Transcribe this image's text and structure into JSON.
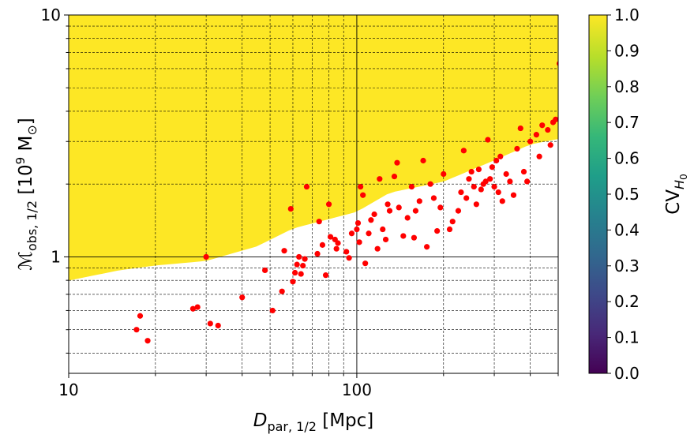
{
  "chart_data": {
    "type": "scatter",
    "title": "",
    "xlabel": "D_par,1/2 [Mpc]",
    "xlabel_parts": {
      "main": "D",
      "sub": "par, 1/2",
      "unit": " [Mpc]"
    },
    "ylabel": "M_obs,1/2 [10^9 M_⊙]",
    "ylabel_parts": {
      "main": "ℳ",
      "sub": "obs, 1/2",
      "unit_open": " [10",
      "unit_exp": "9",
      "unit_close": " M",
      "unit_sun_sub": "⊙",
      "unit_end": "]"
    },
    "xscale": "log",
    "yscale": "log",
    "xlim": [
      10,
      500
    ],
    "ylim": [
      0.33,
      10
    ],
    "x_tick_labels": [
      {
        "value": 10,
        "label": "10"
      },
      {
        "value": 100,
        "label": "100"
      }
    ],
    "y_tick_labels": [
      {
        "value": 1,
        "label": "1"
      },
      {
        "value": 10,
        "label": "10"
      }
    ],
    "grid": "major solid, minor dashed",
    "background": {
      "type": "heatmap",
      "description_quantity": "CV_H0",
      "boundary": [
        {
          "x": 10,
          "y": 0.78
        },
        {
          "x": 15,
          "y": 0.86
        },
        {
          "x": 20,
          "y": 0.9
        },
        {
          "x": 30,
          "y": 0.94
        },
        {
          "x": 45,
          "y": 1.08
        },
        {
          "x": 60,
          "y": 1.28
        },
        {
          "x": 80,
          "y": 1.4
        },
        {
          "x": 100,
          "y": 1.5
        },
        {
          "x": 130,
          "y": 1.8
        },
        {
          "x": 200,
          "y": 2.0
        },
        {
          "x": 300,
          "y": 2.45
        },
        {
          "x": 400,
          "y": 2.85
        },
        {
          "x": 500,
          "y": 3.0
        }
      ]
    },
    "colorbar": {
      "label": "CV_H0",
      "label_parts": {
        "main": "CV",
        "sub": "H",
        "subsub": "0"
      },
      "range": [
        0.0,
        1.0
      ],
      "tick_labels": [
        "0.0",
        "0.1",
        "0.2",
        "0.3",
        "0.4",
        "0.5",
        "0.6",
        "0.7",
        "0.8",
        "0.9",
        "1.0"
      ],
      "colormap": [
        "#440154",
        "#482878",
        "#3e4989",
        "#31688e",
        "#26828e",
        "#1f9e89",
        "#35b779",
        "#6ece58",
        "#b5de2b",
        "#fde725"
      ]
    },
    "series": [
      {
        "marker_color": "#ff0000",
        "points": [
          [
            17.2,
            0.5
          ],
          [
            17.7,
            0.57
          ],
          [
            18.8,
            0.45
          ],
          [
            27.0,
            0.61
          ],
          [
            28.0,
            0.62
          ],
          [
            30.0,
            1.0
          ],
          [
            31.0,
            0.53
          ],
          [
            33.0,
            0.52
          ],
          [
            40.0,
            0.68
          ],
          [
            48.0,
            0.88
          ],
          [
            51.0,
            0.6
          ],
          [
            55.0,
            0.72
          ],
          [
            56.0,
            1.06
          ],
          [
            59.0,
            1.58
          ],
          [
            60.0,
            0.79
          ],
          [
            61.0,
            0.86
          ],
          [
            62.0,
            0.93
          ],
          [
            63.0,
            1.0
          ],
          [
            64.0,
            0.85
          ],
          [
            65.0,
            0.92
          ],
          [
            66.0,
            0.98
          ],
          [
            67.0,
            1.95
          ],
          [
            73.0,
            1.03
          ],
          [
            74.0,
            1.4
          ],
          [
            76.0,
            1.12
          ],
          [
            78.0,
            0.84
          ],
          [
            80.0,
            1.65
          ],
          [
            81.0,
            1.21
          ],
          [
            84.0,
            1.18
          ],
          [
            85.0,
            1.08
          ],
          [
            86.0,
            1.14
          ],
          [
            92.0,
            1.05
          ],
          [
            94.0,
            0.99
          ],
          [
            96.0,
            1.25
          ],
          [
            100.0,
            1.3
          ],
          [
            101.0,
            1.38
          ],
          [
            102.0,
            1.15
          ],
          [
            103.0,
            1.95
          ],
          [
            105.0,
            1.8
          ],
          [
            107.0,
            0.94
          ],
          [
            110.0,
            1.25
          ],
          [
            112.0,
            1.42
          ],
          [
            115.0,
            1.5
          ],
          [
            118.0,
            1.08
          ],
          [
            120.0,
            2.1
          ],
          [
            123.0,
            1.3
          ],
          [
            126.0,
            1.18
          ],
          [
            128.0,
            1.65
          ],
          [
            130.0,
            1.55
          ],
          [
            135.0,
            2.15
          ],
          [
            138.0,
            2.45
          ],
          [
            140.0,
            1.6
          ],
          [
            145.0,
            1.22
          ],
          [
            150.0,
            1.45
          ],
          [
            155.0,
            1.95
          ],
          [
            158.0,
            1.2
          ],
          [
            160.0,
            1.55
          ],
          [
            165.0,
            1.7
          ],
          [
            170.0,
            2.5
          ],
          [
            175.0,
            1.1
          ],
          [
            180.0,
            2.0
          ],
          [
            185.0,
            1.75
          ],
          [
            190.0,
            1.28
          ],
          [
            195.0,
            1.6
          ],
          [
            200.0,
            2.2
          ],
          [
            210.0,
            1.3
          ],
          [
            215.0,
            1.4
          ],
          [
            225.0,
            1.55
          ],
          [
            230.0,
            1.85
          ],
          [
            235.0,
            2.75
          ],
          [
            240.0,
            1.75
          ],
          [
            245.0,
            2.1
          ],
          [
            250.0,
            2.25
          ],
          [
            255.0,
            1.95
          ],
          [
            260.0,
            1.65
          ],
          [
            265.0,
            2.3
          ],
          [
            270.0,
            1.9
          ],
          [
            275.0,
            2.0
          ],
          [
            280.0,
            2.05
          ],
          [
            285.0,
            3.05
          ],
          [
            290.0,
            2.1
          ],
          [
            295.0,
            2.35
          ],
          [
            300.0,
            1.95
          ],
          [
            305.0,
            2.5
          ],
          [
            310.0,
            1.85
          ],
          [
            315.0,
            2.6
          ],
          [
            320.0,
            1.7
          ],
          [
            330.0,
            2.2
          ],
          [
            340.0,
            2.05
          ],
          [
            350.0,
            1.8
          ],
          [
            360.0,
            2.8
          ],
          [
            370.0,
            3.4
          ],
          [
            380.0,
            2.25
          ],
          [
            390.0,
            2.05
          ],
          [
            400.0,
            3.0
          ],
          [
            420.0,
            3.2
          ],
          [
            430.0,
            2.6
          ],
          [
            440.0,
            3.5
          ],
          [
            460.0,
            3.35
          ],
          [
            470.0,
            2.9
          ],
          [
            480.0,
            3.6
          ],
          [
            490.0,
            3.7
          ],
          [
            505.0,
            6.3
          ],
          [
            510.0,
            4.0
          ]
        ]
      }
    ]
  }
}
